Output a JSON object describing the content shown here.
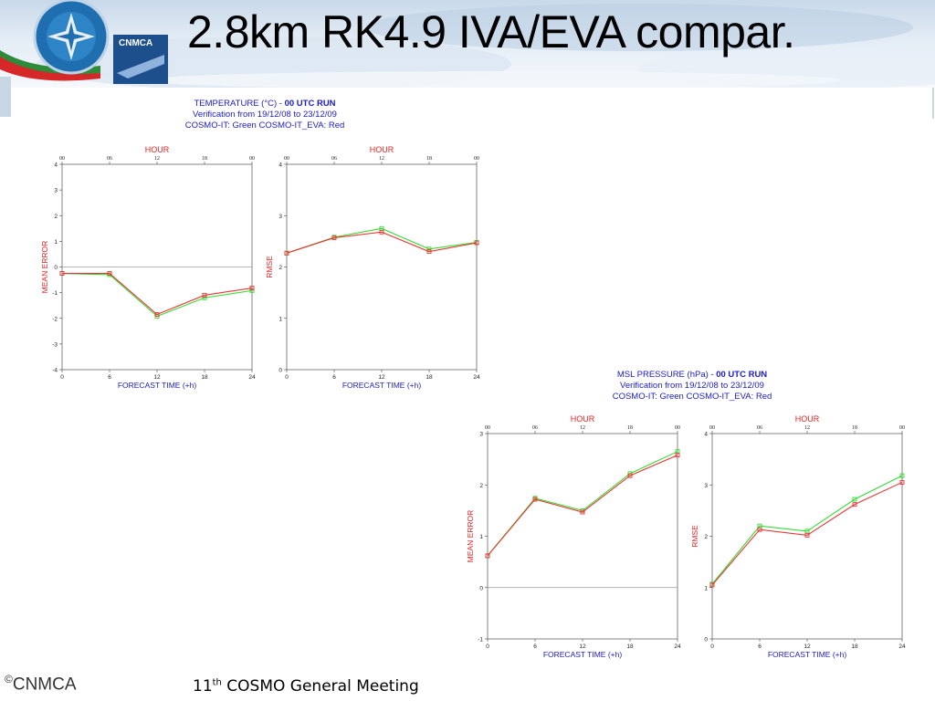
{
  "slide": {
    "title": "2.8km RK4.9 IVA/EVA compar.",
    "logo_text": "CNMCA",
    "footer_logo": "CNMCA",
    "footer_logo_mark": "©",
    "footer_prefix": "11",
    "footer_sup": "th",
    "footer_rest": " COSMO General Meeting"
  },
  "colors": {
    "green": "#33dd33",
    "red": "#ee3333",
    "blue_text": "#1b1bcc",
    "red_text": "#ee2222"
  },
  "chart_data": [
    {
      "id": "temp",
      "header": {
        "line1_a": "TEMPERATURE (°C) - ",
        "line1_b": "00 UTC RUN",
        "line2": "Verification from 19/12/08 to 23/12/09",
        "line3": "COSMO-IT: Green  COSMO-IT_EVA: Red"
      },
      "panels": [
        {
          "type": "line",
          "ylabel": "MEAN ERROR",
          "xlabel": "FORECAST TIME (+h)",
          "top_label": "HOUR",
          "x": [
            0,
            6,
            12,
            18,
            24
          ],
          "top_ticks": [
            "00",
            "06",
            "12",
            "18",
            "00"
          ],
          "ylim": [
            -4,
            4
          ],
          "yticks": [
            -4,
            -3,
            -2,
            -1,
            0,
            1,
            2,
            3,
            4
          ],
          "zero_line": true,
          "series": [
            {
              "name": "COSMO-IT",
              "color": "#33dd33",
              "values": [
                -0.25,
                -0.3,
                -1.92,
                -1.2,
                -0.92
              ]
            },
            {
              "name": "COSMO-IT_EVA",
              "color": "#ee3333",
              "values": [
                -0.25,
                -0.25,
                -1.85,
                -1.1,
                -0.82
              ]
            }
          ]
        },
        {
          "type": "line",
          "ylabel": "RMSE",
          "xlabel": "FORECAST TIME (+h)",
          "top_label": "HOUR",
          "x": [
            0,
            6,
            12,
            18,
            24
          ],
          "top_ticks": [
            "00",
            "06",
            "12",
            "18",
            "00"
          ],
          "ylim": [
            0,
            4
          ],
          "yticks": [
            0,
            1,
            2,
            3,
            4
          ],
          "zero_line": false,
          "series": [
            {
              "name": "COSMO-IT",
              "color": "#33dd33",
              "values": [
                2.27,
                2.58,
                2.75,
                2.35,
                2.48
              ]
            },
            {
              "name": "COSMO-IT_EVA",
              "color": "#ee3333",
              "values": [
                2.27,
                2.57,
                2.68,
                2.3,
                2.47
              ]
            }
          ]
        }
      ]
    },
    {
      "id": "mslp",
      "header": {
        "line1_a": "MSL PRESSURE (hPa) - ",
        "line1_b": "00 UTC RUN",
        "line2": "Verification from 19/12/08 to 23/12/09",
        "line3": "COSMO-IT: Green  COSMO-IT_EVA: Red"
      },
      "panels": [
        {
          "type": "line",
          "ylabel": "MEAN ERROR",
          "xlabel": "FORECAST TIME (+h)",
          "top_label": "HOUR",
          "x": [
            0,
            6,
            12,
            18,
            24
          ],
          "top_ticks": [
            "00",
            "06",
            "12",
            "18",
            "00"
          ],
          "ylim": [
            -1,
            3
          ],
          "yticks": [
            -1,
            0,
            1,
            2,
            3
          ],
          "zero_line": true,
          "series": [
            {
              "name": "COSMO-IT",
              "color": "#33dd33",
              "values": [
                0.62,
                1.74,
                1.5,
                2.22,
                2.65
              ]
            },
            {
              "name": "COSMO-IT_EVA",
              "color": "#ee3333",
              "values": [
                0.62,
                1.72,
                1.47,
                2.18,
                2.58
              ]
            }
          ]
        },
        {
          "type": "line",
          "ylabel": "RMSE",
          "xlabel": "FORECAST TIME (+h)",
          "top_label": "HOUR",
          "x": [
            0,
            6,
            12,
            18,
            24
          ],
          "top_ticks": [
            "00",
            "06",
            "12",
            "18",
            "00"
          ],
          "ylim": [
            0,
            4
          ],
          "yticks": [
            0,
            1,
            2,
            3,
            4
          ],
          "zero_line": false,
          "series": [
            {
              "name": "COSMO-IT",
              "color": "#33dd33",
              "values": [
                1.07,
                2.2,
                2.1,
                2.72,
                3.18
              ]
            },
            {
              "name": "COSMO-IT_EVA",
              "color": "#ee3333",
              "values": [
                1.05,
                2.13,
                2.02,
                2.62,
                3.05
              ]
            }
          ]
        }
      ]
    }
  ]
}
